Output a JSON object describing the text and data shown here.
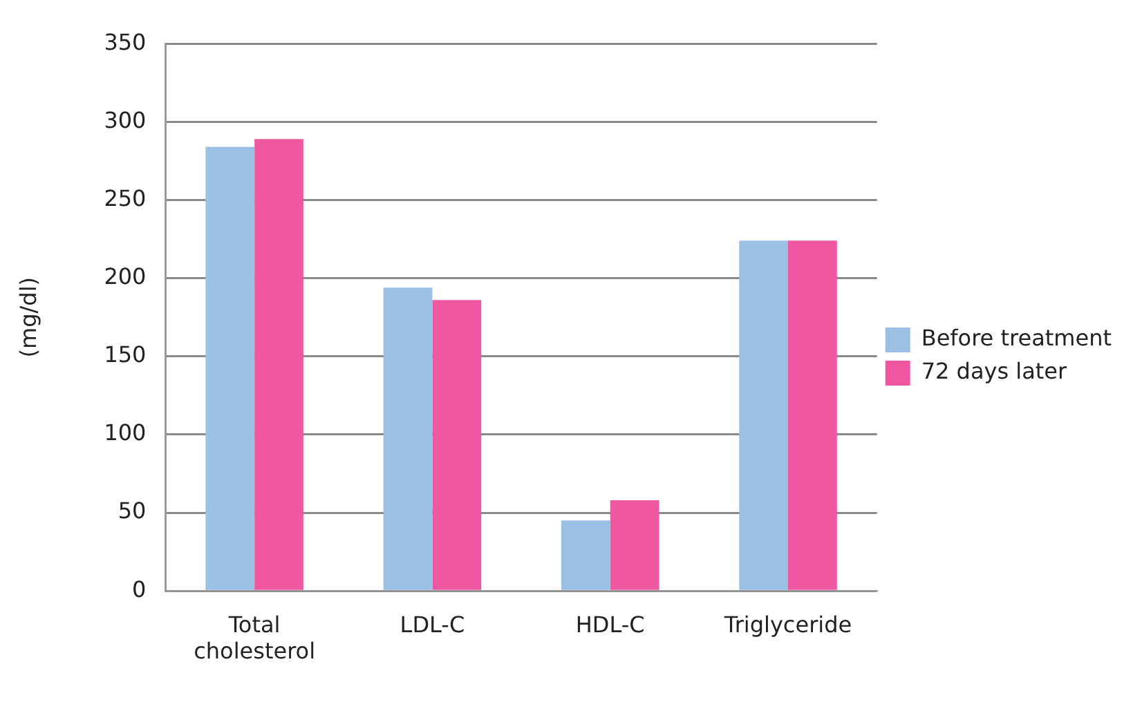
{
  "chart_data": {
    "type": "bar",
    "ylabel": "(mg/dl)",
    "categories": [
      "Total cholesterol",
      "LDL-C",
      "HDL-C",
      "Triglyceride"
    ],
    "series": [
      {
        "name": "Before treatment",
        "color": "#9bc0e4",
        "values": [
          284,
          194,
          45,
          224
        ]
      },
      {
        "name": "72 days later",
        "color": "#ef58a0",
        "values": [
          289,
          186,
          58,
          224
        ]
      }
    ],
    "ylim": [
      0,
      350
    ],
    "yticks": [
      0,
      50,
      100,
      150,
      200,
      250,
      300,
      350
    ],
    "grid": "y",
    "legend": "right"
  }
}
